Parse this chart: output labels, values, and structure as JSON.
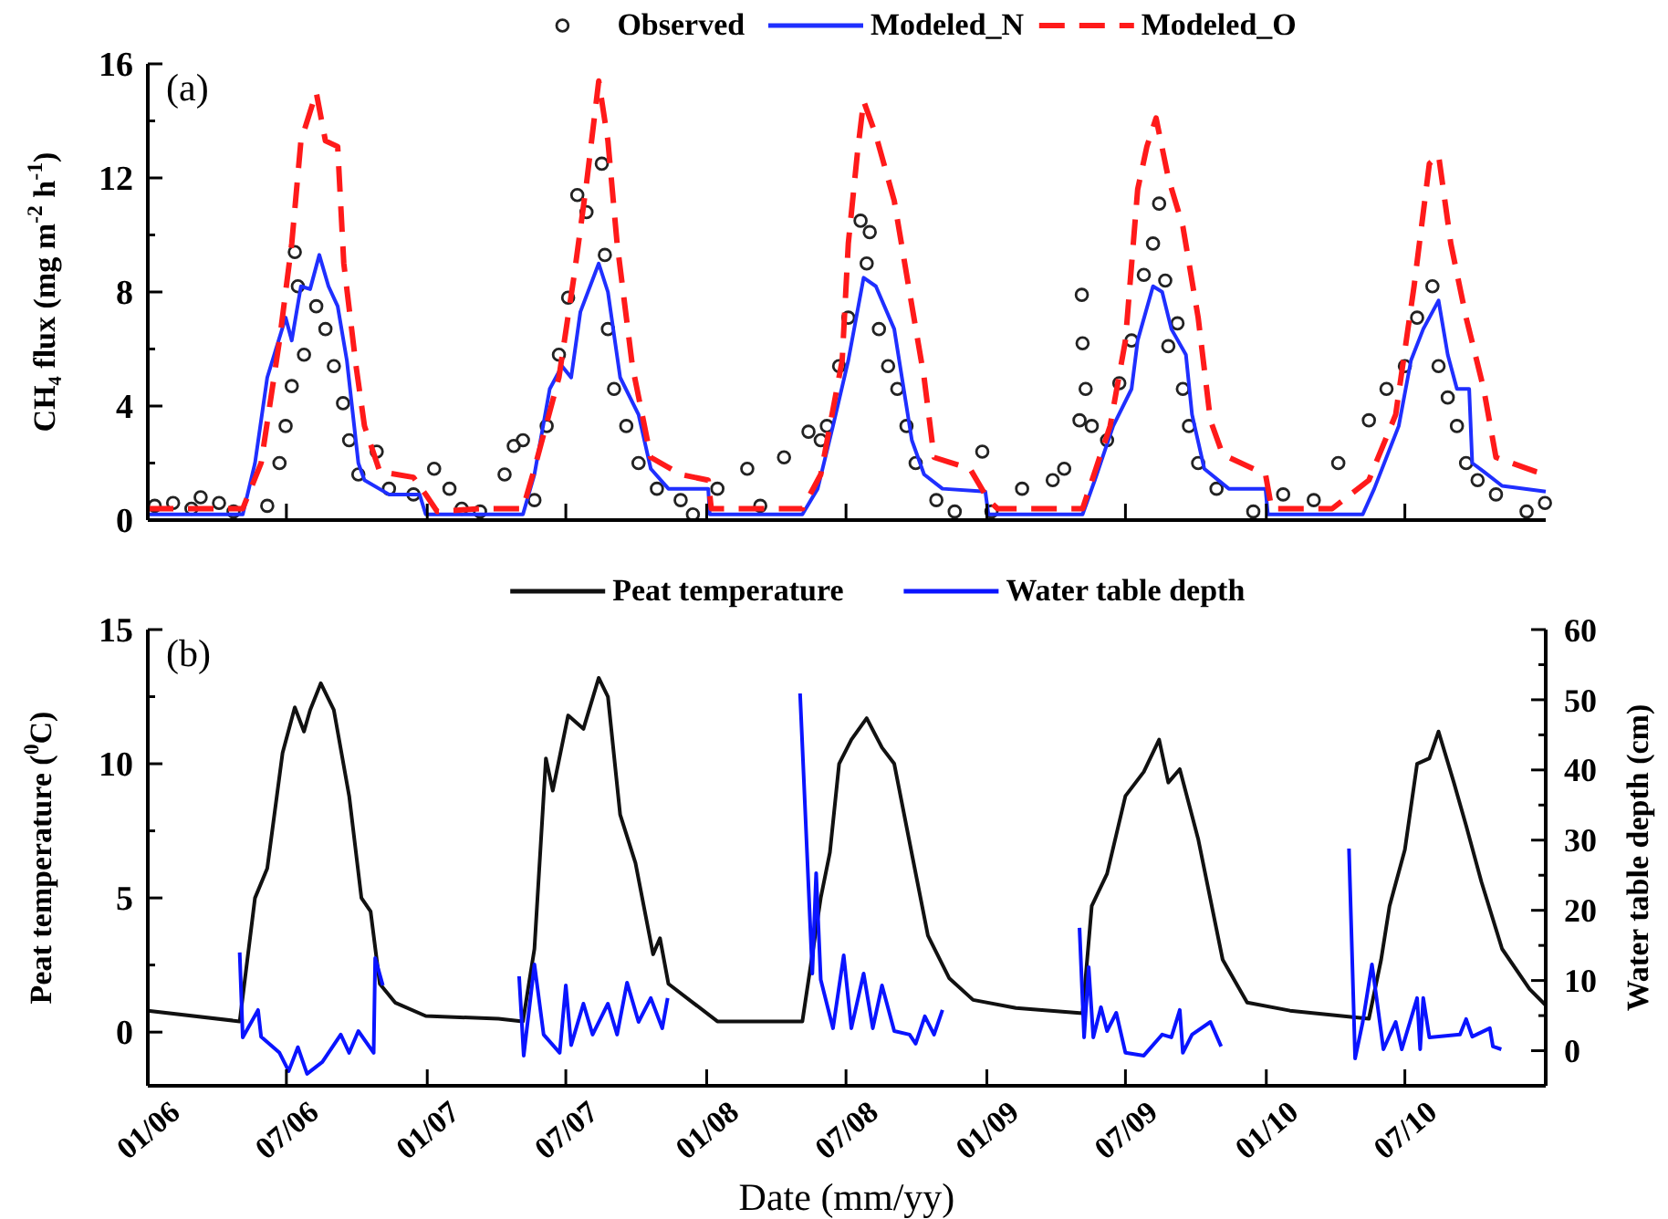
{
  "chart_data": [
    {
      "type": "line",
      "title": "(a)",
      "ylabel": "CH₄ flux (mg m$^{-2}$ h$^{-1}$)",
      "legend": "top",
      "tick_labels": "y",
      "xlim": [
        "2006-01-01",
        "2011-01-01"
      ],
      "xticks": [
        "2006-01-01",
        "2006-07-01",
        "2007-01-01",
        "2007-07-01",
        "2008-01-01",
        "2008-07-01",
        "2009-01-01",
        "2009-07-01",
        "2010-01-01",
        "2010-07-01"
      ],
      "ylim": [
        0,
        16
      ],
      "yticks": [
        0,
        {
          "value": 2,
          "label": null
        },
        4,
        {
          "value": 6,
          "label": null
        },
        8,
        {
          "value": 10,
          "label": null
        },
        12,
        {
          "value": 14,
          "label": null
        },
        16
      ],
      "series": [
        {
          "name": "Observed",
          "type": "scatter",
          "marker": "circle",
          "color": "#222222",
          "x": [
            "2006-01-10",
            "2006-02-03",
            "2006-02-27",
            "2006-03-11",
            "2006-04-04",
            "2006-04-23",
            "2006-06-06",
            "2006-06-22",
            "2006-06-30",
            "2006-07-08",
            "2006-07-12",
            "2006-07-16",
            "2006-07-24",
            "2006-08-09",
            "2006-08-21",
            "2006-09-01",
            "2006-09-13",
            "2006-09-21",
            "2006-10-03",
            "2006-10-27",
            "2006-11-12",
            "2006-12-14",
            "2007-01-10",
            "2007-01-30",
            "2007-02-15",
            "2007-03-11",
            "2007-04-12",
            "2007-04-24",
            "2007-05-06",
            "2007-05-21",
            "2007-06-06",
            "2007-06-22",
            "2007-07-04",
            "2007-07-16",
            "2007-07-28",
            "2007-08-17",
            "2007-08-21",
            "2007-08-25",
            "2007-09-02",
            "2007-09-18",
            "2007-10-04",
            "2007-10-28",
            "2007-11-28",
            "2007-12-14",
            "2008-01-15",
            "2008-02-23",
            "2008-03-11",
            "2008-04-11",
            "2008-05-13",
            "2008-05-29",
            "2008-06-06",
            "2008-06-22",
            "2008-07-04",
            "2008-07-20",
            "2008-07-28",
            "2008-08-01",
            "2008-08-13",
            "2008-08-25",
            "2008-09-06",
            "2008-09-18",
            "2008-09-30",
            "2008-10-27",
            "2008-11-20",
            "2008-12-26",
            "2009-01-07",
            "2009-02-16",
            "2009-03-28",
            "2009-04-12",
            "2009-05-02",
            "2009-05-05",
            "2009-05-06",
            "2009-05-10",
            "2009-05-18",
            "2009-06-07",
            "2009-06-23",
            "2009-07-09",
            "2009-07-25",
            "2009-08-06",
            "2009-08-14",
            "2009-08-22",
            "2009-08-26",
            "2009-09-07",
            "2009-09-14",
            "2009-09-22",
            "2009-10-04",
            "2009-10-28",
            "2009-12-15",
            "2010-01-23",
            "2010-03-04",
            "2010-04-05",
            "2010-05-15",
            "2010-06-07",
            "2010-07-01",
            "2010-07-17",
            "2010-08-06",
            "2010-08-14",
            "2010-08-26",
            "2010-09-07",
            "2010-09-19",
            "2010-10-04",
            "2010-10-28",
            "2010-12-07",
            "2010-12-31"
          ],
          "values": [
            0.5,
            0.6,
            0.4,
            0.8,
            0.6,
            0.3,
            0.5,
            2.0,
            3.3,
            4.7,
            9.4,
            8.2,
            5.8,
            7.5,
            6.7,
            5.4,
            4.1,
            2.8,
            1.6,
            2.4,
            1.1,
            0.9,
            1.8,
            1.1,
            0.4,
            0.3,
            1.6,
            2.6,
            2.8,
            0.7,
            3.3,
            5.8,
            7.8,
            11.4,
            10.8,
            12.5,
            9.3,
            6.7,
            4.6,
            3.3,
            2.0,
            1.1,
            0.7,
            0.2,
            1.1,
            1.8,
            0.5,
            2.2,
            3.1,
            2.8,
            3.3,
            5.4,
            7.1,
            10.5,
            9.0,
            10.1,
            6.7,
            5.4,
            4.6,
            3.3,
            2.0,
            0.7,
            0.3,
            2.4,
            0.3,
            1.1,
            1.4,
            1.8,
            3.5,
            7.9,
            6.2,
            4.6,
            3.3,
            2.8,
            4.8,
            6.3,
            8.6,
            9.7,
            11.1,
            8.4,
            6.1,
            6.9,
            4.6,
            3.3,
            2.0,
            1.1,
            0.3,
            0.9,
            0.7,
            2.0,
            3.5,
            4.6,
            5.4,
            7.1,
            8.2,
            5.4,
            4.3,
            3.3,
            2.0,
            1.4,
            0.9,
            0.3,
            0.6
          ]
        },
        {
          "name": "Modeled_N",
          "line_style": "solid",
          "color": "#1f2fff",
          "x": [
            "2006-01-01",
            "2006-05-05",
            "2006-05-21",
            "2006-06-06",
            "2006-06-30",
            "2006-07-08",
            "2006-07-20",
            "2006-08-01",
            "2006-08-13",
            "2006-08-25",
            "2006-09-06",
            "2006-09-18",
            "2006-10-03",
            "2006-10-11",
            "2006-11-12",
            "2006-12-22",
            "2006-12-30",
            "2007-05-06",
            "2007-05-21",
            "2007-06-10",
            "2007-06-26",
            "2007-07-08",
            "2007-07-20",
            "2007-08-13",
            "2007-08-25",
            "2007-09-10",
            "2007-10-04",
            "2007-10-20",
            "2007-11-12",
            "2008-01-03",
            "2008-01-05",
            "2008-05-05",
            "2008-05-25",
            "2008-06-14",
            "2008-07-04",
            "2008-07-24",
            "2008-08-09",
            "2008-09-02",
            "2008-09-25",
            "2008-10-11",
            "2008-11-04",
            "2008-12-30",
            "2009-01-03",
            "2009-05-06",
            "2009-05-22",
            "2009-06-15",
            "2009-07-09",
            "2009-07-17",
            "2009-08-06",
            "2009-08-18",
            "2009-08-30",
            "2009-09-18",
            "2009-09-26",
            "2009-10-12",
            "2009-11-13",
            "2009-12-31",
            "2010-01-03",
            "2010-05-07",
            "2010-05-22",
            "2010-06-23",
            "2010-07-09",
            "2010-07-25",
            "2010-08-14",
            "2010-08-26",
            "2010-09-07",
            "2010-09-23",
            "2010-09-27",
            "2010-10-12",
            "2010-11-05",
            "2011-01-01"
          ],
          "values": [
            0.2,
            0.2,
            2.0,
            5.0,
            7.1,
            6.3,
            8.2,
            8.1,
            9.3,
            8.2,
            7.5,
            5.6,
            2.0,
            1.4,
            0.9,
            0.9,
            0.2,
            0.2,
            1.6,
            4.6,
            5.4,
            5.0,
            7.3,
            9.0,
            8.0,
            5.0,
            3.7,
            1.8,
            1.1,
            1.1,
            0.2,
            0.2,
            1.1,
            3.3,
            5.6,
            8.5,
            8.2,
            6.7,
            2.8,
            1.6,
            1.1,
            1.0,
            0.2,
            0.2,
            1.4,
            3.3,
            4.6,
            6.3,
            8.2,
            8.0,
            6.7,
            5.8,
            3.7,
            1.8,
            1.1,
            1.1,
            0.2,
            0.2,
            1.1,
            3.3,
            5.6,
            6.7,
            7.7,
            5.8,
            4.6,
            4.6,
            2.0,
            1.7,
            1.2,
            1.0
          ]
        },
        {
          "name": "Modeled_O",
          "line_style": "dashed",
          "color": "#ff1a1a",
          "x": [
            "2006-01-01",
            "2006-05-05",
            "2006-05-29",
            "2006-06-22",
            "2006-07-08",
            "2006-07-20",
            "2006-08-09",
            "2006-08-21",
            "2006-09-06",
            "2006-09-14",
            "2006-09-30",
            "2006-10-11",
            "2006-10-31",
            "2006-12-14",
            "2006-12-30",
            "2007-01-14",
            "2007-03-11",
            "2007-05-06",
            "2007-05-21",
            "2007-06-22",
            "2007-07-12",
            "2007-07-28",
            "2007-08-13",
            "2007-08-25",
            "2007-09-06",
            "2007-09-26",
            "2007-10-20",
            "2007-11-28",
            "2008-01-03",
            "2008-01-07",
            "2008-05-05",
            "2008-05-29",
            "2008-06-26",
            "2008-07-04",
            "2008-07-16",
            "2008-07-24",
            "2008-08-09",
            "2008-09-02",
            "2008-09-22",
            "2008-10-11",
            "2008-10-24",
            "2008-12-10",
            "2009-01-03",
            "2009-01-15",
            "2009-05-06",
            "2009-06-11",
            "2009-07-01",
            "2009-07-17",
            "2009-07-29",
            "2009-08-10",
            "2009-08-26",
            "2009-09-14",
            "2009-10-04",
            "2009-10-20",
            "2009-11-05",
            "2009-12-31",
            "2010-01-08",
            "2010-03-28",
            "2010-05-15",
            "2010-06-19",
            "2010-07-13",
            "2010-08-02",
            "2010-08-14",
            "2010-08-30",
            "2010-09-19",
            "2010-10-12",
            "2010-10-28",
            "2010-12-19",
            "2011-01-01"
          ],
          "values": [
            0.4,
            0.4,
            2.0,
            6.3,
            9.7,
            13.3,
            15.0,
            13.3,
            13.1,
            9.0,
            5.4,
            3.3,
            1.7,
            1.5,
            0.9,
            0.3,
            0.4,
            0.4,
            1.8,
            5.0,
            8.6,
            11.8,
            15.4,
            13.3,
            9.7,
            5.4,
            2.2,
            1.6,
            1.4,
            0.4,
            0.4,
            1.6,
            5.6,
            9.7,
            12.9,
            14.7,
            13.5,
            11.2,
            8.0,
            5.0,
            2.2,
            1.8,
            0.7,
            0.4,
            0.4,
            3.3,
            6.3,
            11.6,
            13.1,
            14.1,
            12.0,
            10.3,
            7.1,
            3.5,
            2.3,
            1.6,
            0.4,
            0.4,
            1.4,
            3.7,
            8.2,
            12.5,
            12.8,
            9.7,
            7.1,
            4.6,
            2.2,
            1.7,
            1.6
          ]
        }
      ]
    },
    {
      "type": "line",
      "title": "(b)",
      "xlabel": "Date (mm/yy)",
      "ylabel": "Peat temperature ($^{0}$C)",
      "y2label": "Water table depth (cm)",
      "legend": "top",
      "xlim": [
        "2006-01-01",
        "2011-01-01"
      ],
      "xticks": [
        {
          "value": "2006-01-01",
          "label": "01/06"
        },
        {
          "value": "2006-07-01",
          "label": "07/06"
        },
        {
          "value": "2007-01-01",
          "label": "01/07"
        },
        {
          "value": "2007-07-01",
          "label": "07/07"
        },
        {
          "value": "2008-01-01",
          "label": "01/08"
        },
        {
          "value": "2008-07-01",
          "label": "07/08"
        },
        {
          "value": "2009-01-01",
          "label": "01/09"
        },
        {
          "value": "2009-07-01",
          "label": "07/09"
        },
        {
          "value": "2010-01-01",
          "label": "01/10"
        },
        {
          "value": "2010-07-01",
          "label": "07/10"
        }
      ],
      "ylim": [
        -2,
        15
      ],
      "yticks": [
        0,
        {
          "value": 2.5,
          "label": null
        },
        5,
        {
          "value": 7.5,
          "label": null
        },
        10,
        {
          "value": 12.5,
          "label": null
        },
        15
      ],
      "y2lim": [
        -5,
        60
      ],
      "y2ticks": [
        0,
        {
          "value": 5,
          "label": null
        },
        10,
        {
          "value": 15,
          "label": null
        },
        20,
        {
          "value": 25,
          "label": null
        },
        30,
        {
          "value": 35,
          "label": null
        },
        40,
        {
          "value": 45,
          "label": null
        },
        50,
        {
          "value": 55,
          "label": null
        },
        60
      ],
      "series": [
        {
          "name": "Peat temperature",
          "line_style": "solid",
          "color": "#111111",
          "x": [
            "2006-01-01",
            "2006-05-01",
            "2006-05-21",
            "2006-06-06",
            "2006-06-26",
            "2006-07-12",
            "2006-07-24",
            "2006-08-01",
            "2006-08-15",
            "2006-09-01",
            "2006-09-21",
            "2006-10-07",
            "2006-10-19",
            "2006-10-31",
            "2006-11-20",
            "2006-12-30",
            "2007-04-04",
            "2007-05-06",
            "2007-05-21",
            "2007-06-05",
            "2007-06-14",
            "2007-07-04",
            "2007-07-24",
            "2007-08-13",
            "2007-08-25",
            "2007-09-10",
            "2007-09-30",
            "2007-10-23",
            "2007-11-01",
            "2007-11-12",
            "2007-12-14",
            "2008-01-15",
            "2008-05-05",
            "2008-05-29",
            "2008-06-10",
            "2008-06-22",
            "2008-07-08",
            "2008-07-28",
            "2008-08-17",
            "2008-09-02",
            "2008-09-26",
            "2008-10-16",
            "2008-11-13",
            "2008-12-14",
            "2009-02-08",
            "2009-05-06",
            "2009-05-18",
            "2009-06-07",
            "2009-07-01",
            "2009-07-25",
            "2009-08-14",
            "2009-08-26",
            "2009-09-10",
            "2009-10-04",
            "2009-11-05",
            "2009-12-07",
            "2010-02-01",
            "2010-05-15",
            "2010-05-31",
            "2010-06-11",
            "2010-07-01",
            "2010-07-17",
            "2010-08-02",
            "2010-08-14",
            "2010-09-03",
            "2010-09-19",
            "2010-10-09",
            "2010-11-05",
            "2010-12-11",
            "2011-01-01"
          ],
          "values": [
            0.8,
            0.4,
            5.0,
            6.1,
            10.4,
            12.1,
            11.2,
            12.0,
            13.0,
            12.0,
            8.8,
            5.0,
            4.5,
            1.8,
            1.1,
            0.6,
            0.5,
            0.4,
            3.1,
            10.2,
            9.0,
            11.8,
            11.3,
            13.2,
            12.5,
            8.1,
            6.3,
            2.9,
            3.5,
            1.8,
            1.1,
            0.4,
            0.4,
            5.0,
            6.7,
            10.0,
            10.9,
            11.7,
            10.6,
            10.0,
            6.5,
            3.6,
            2.0,
            1.2,
            0.9,
            0.7,
            4.7,
            5.9,
            8.8,
            9.7,
            10.9,
            9.3,
            9.8,
            7.2,
            2.7,
            1.1,
            0.8,
            0.5,
            2.7,
            4.7,
            6.8,
            10.0,
            10.2,
            11.2,
            9.3,
            7.7,
            5.6,
            3.1,
            1.6,
            1.0
          ]
        },
        {
          "name": "Water table depth",
          "axis": "y2",
          "line_style": "solid",
          "color": "#0a14ff",
          "x": [
            "2006-05-01",
            "2006-05-05",
            "2006-05-25",
            "2006-05-29",
            "2006-06-22",
            "2006-07-04",
            "2006-07-16",
            "2006-07-28",
            "2006-08-17",
            "2006-09-10",
            "2006-09-21",
            "2006-10-03",
            "2006-10-23",
            "2006-10-25",
            "2006-11-04",
            "2007-01-01",
            "2007-05-01",
            "2007-05-07",
            "2007-05-21",
            "2007-06-02",
            "2007-06-23",
            "2007-07-01",
            "2007-07-08",
            "2007-07-24",
            "2007-08-05",
            "2007-08-25",
            "2007-09-06",
            "2007-09-19",
            "2007-10-04",
            "2007-10-20",
            "2007-11-04",
            "2007-11-11",
            "2008-01-01",
            "2008-05-02",
            "2008-05-18",
            "2008-05-23",
            "2008-05-29",
            "2008-06-14",
            "2008-06-28",
            "2008-07-08",
            "2008-07-24",
            "2008-08-05",
            "2008-08-17",
            "2008-09-02",
            "2008-09-22",
            "2008-09-30",
            "2008-10-12",
            "2008-10-24",
            "2008-11-04",
            "2009-01-01",
            "2009-05-02",
            "2009-05-08",
            "2009-05-14",
            "2009-05-20",
            "2009-05-30",
            "2009-06-07",
            "2009-06-19",
            "2009-07-01",
            "2009-07-25",
            "2009-08-18",
            "2009-08-30",
            "2009-09-10",
            "2009-09-14",
            "2009-09-26",
            "2009-10-20",
            "2009-11-03",
            "2010-01-01",
            "2010-04-19",
            "2010-04-27",
            "2010-05-07",
            "2010-05-19",
            "2010-05-26",
            "2010-06-03",
            "2010-06-19",
            "2010-06-27",
            "2010-07-17",
            "2010-07-21",
            "2010-07-25",
            "2010-08-02",
            "2010-09-11",
            "2010-09-19",
            "2010-09-27",
            "2010-10-20",
            "2010-10-24",
            "2010-11-04"
          ],
          "values": [
            14,
            1.9,
            5.8,
            2.0,
            -0.3,
            -2.9,
            0.5,
            -3.3,
            -1.6,
            2.3,
            -0.3,
            2.8,
            -0.3,
            13.2,
            9.3,
            null,
            10.6,
            -0.7,
            12.3,
            2.3,
            -0.3,
            9.3,
            0.8,
            6.7,
            2.3,
            6.7,
            2.3,
            9.7,
            4.1,
            7.5,
            3.2,
            7.5,
            null,
            50.9,
            11.0,
            25.3,
            10.1,
            3.2,
            13.6,
            3.2,
            11.0,
            3.2,
            9.3,
            2.8,
            2.3,
            1.0,
            4.9,
            2.3,
            5.8,
            null,
            17.5,
            1.9,
            11.9,
            1.9,
            6.2,
            2.8,
            5.4,
            -0.3,
            -0.7,
            2.3,
            1.9,
            5.8,
            -0.3,
            2.3,
            4.1,
            0.6,
            null,
            28.8,
            -1.1,
            4.1,
            12.3,
            6.7,
            0.2,
            4.1,
            0.2,
            7.5,
            0.2,
            7.5,
            1.9,
            2.3,
            4.5,
            2.0,
            3.2,
            0.6,
            0.2
          ]
        }
      ]
    }
  ]
}
